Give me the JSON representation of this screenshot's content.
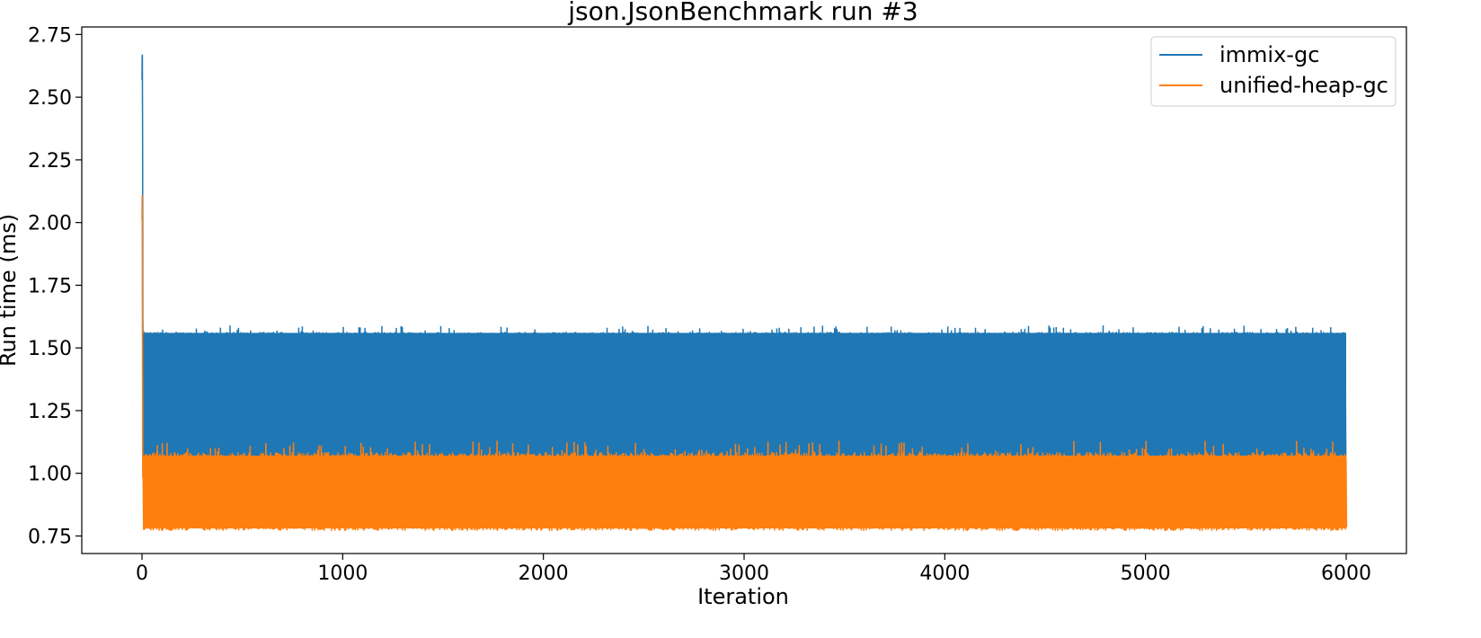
{
  "chart_data": {
    "type": "line",
    "title": "json.JsonBenchmark run #3",
    "xlabel": "Iteration",
    "ylabel": "Run time (ms)",
    "xlim": [
      -300,
      6300
    ],
    "ylim": [
      0.68,
      2.78
    ],
    "x_ticks": [
      0,
      1000,
      2000,
      3000,
      4000,
      5000,
      6000
    ],
    "x_tick_labels": [
      "0",
      "1000",
      "2000",
      "3000",
      "4000",
      "5000",
      "6000"
    ],
    "y_ticks": [
      0.75,
      1.0,
      1.25,
      1.5,
      1.75,
      2.0,
      2.25,
      2.5,
      2.75
    ],
    "y_tick_labels": [
      "0.75",
      "1.00",
      "1.25",
      "1.50",
      "1.75",
      "2.00",
      "2.25",
      "2.50",
      "2.75"
    ],
    "grid": false,
    "legend_position": "top-right",
    "iterations": 6000,
    "series": [
      {
        "name": "immix-gc",
        "color": "#1f77b4",
        "warmup": [
          2.57,
          2.66,
          2.67,
          2.31,
          1.62,
          1.55,
          1.48
        ],
        "band_low": 1.07,
        "band_high": 1.56,
        "peak_max": 1.59
      },
      {
        "name": "unified-heap-gc",
        "color": "#ff7f0e",
        "warmup": [
          2.01,
          2.11,
          1.7,
          1.14,
          0.98
        ],
        "band_low": 0.78,
        "band_high": 1.07,
        "peak_max": 1.13
      }
    ]
  }
}
